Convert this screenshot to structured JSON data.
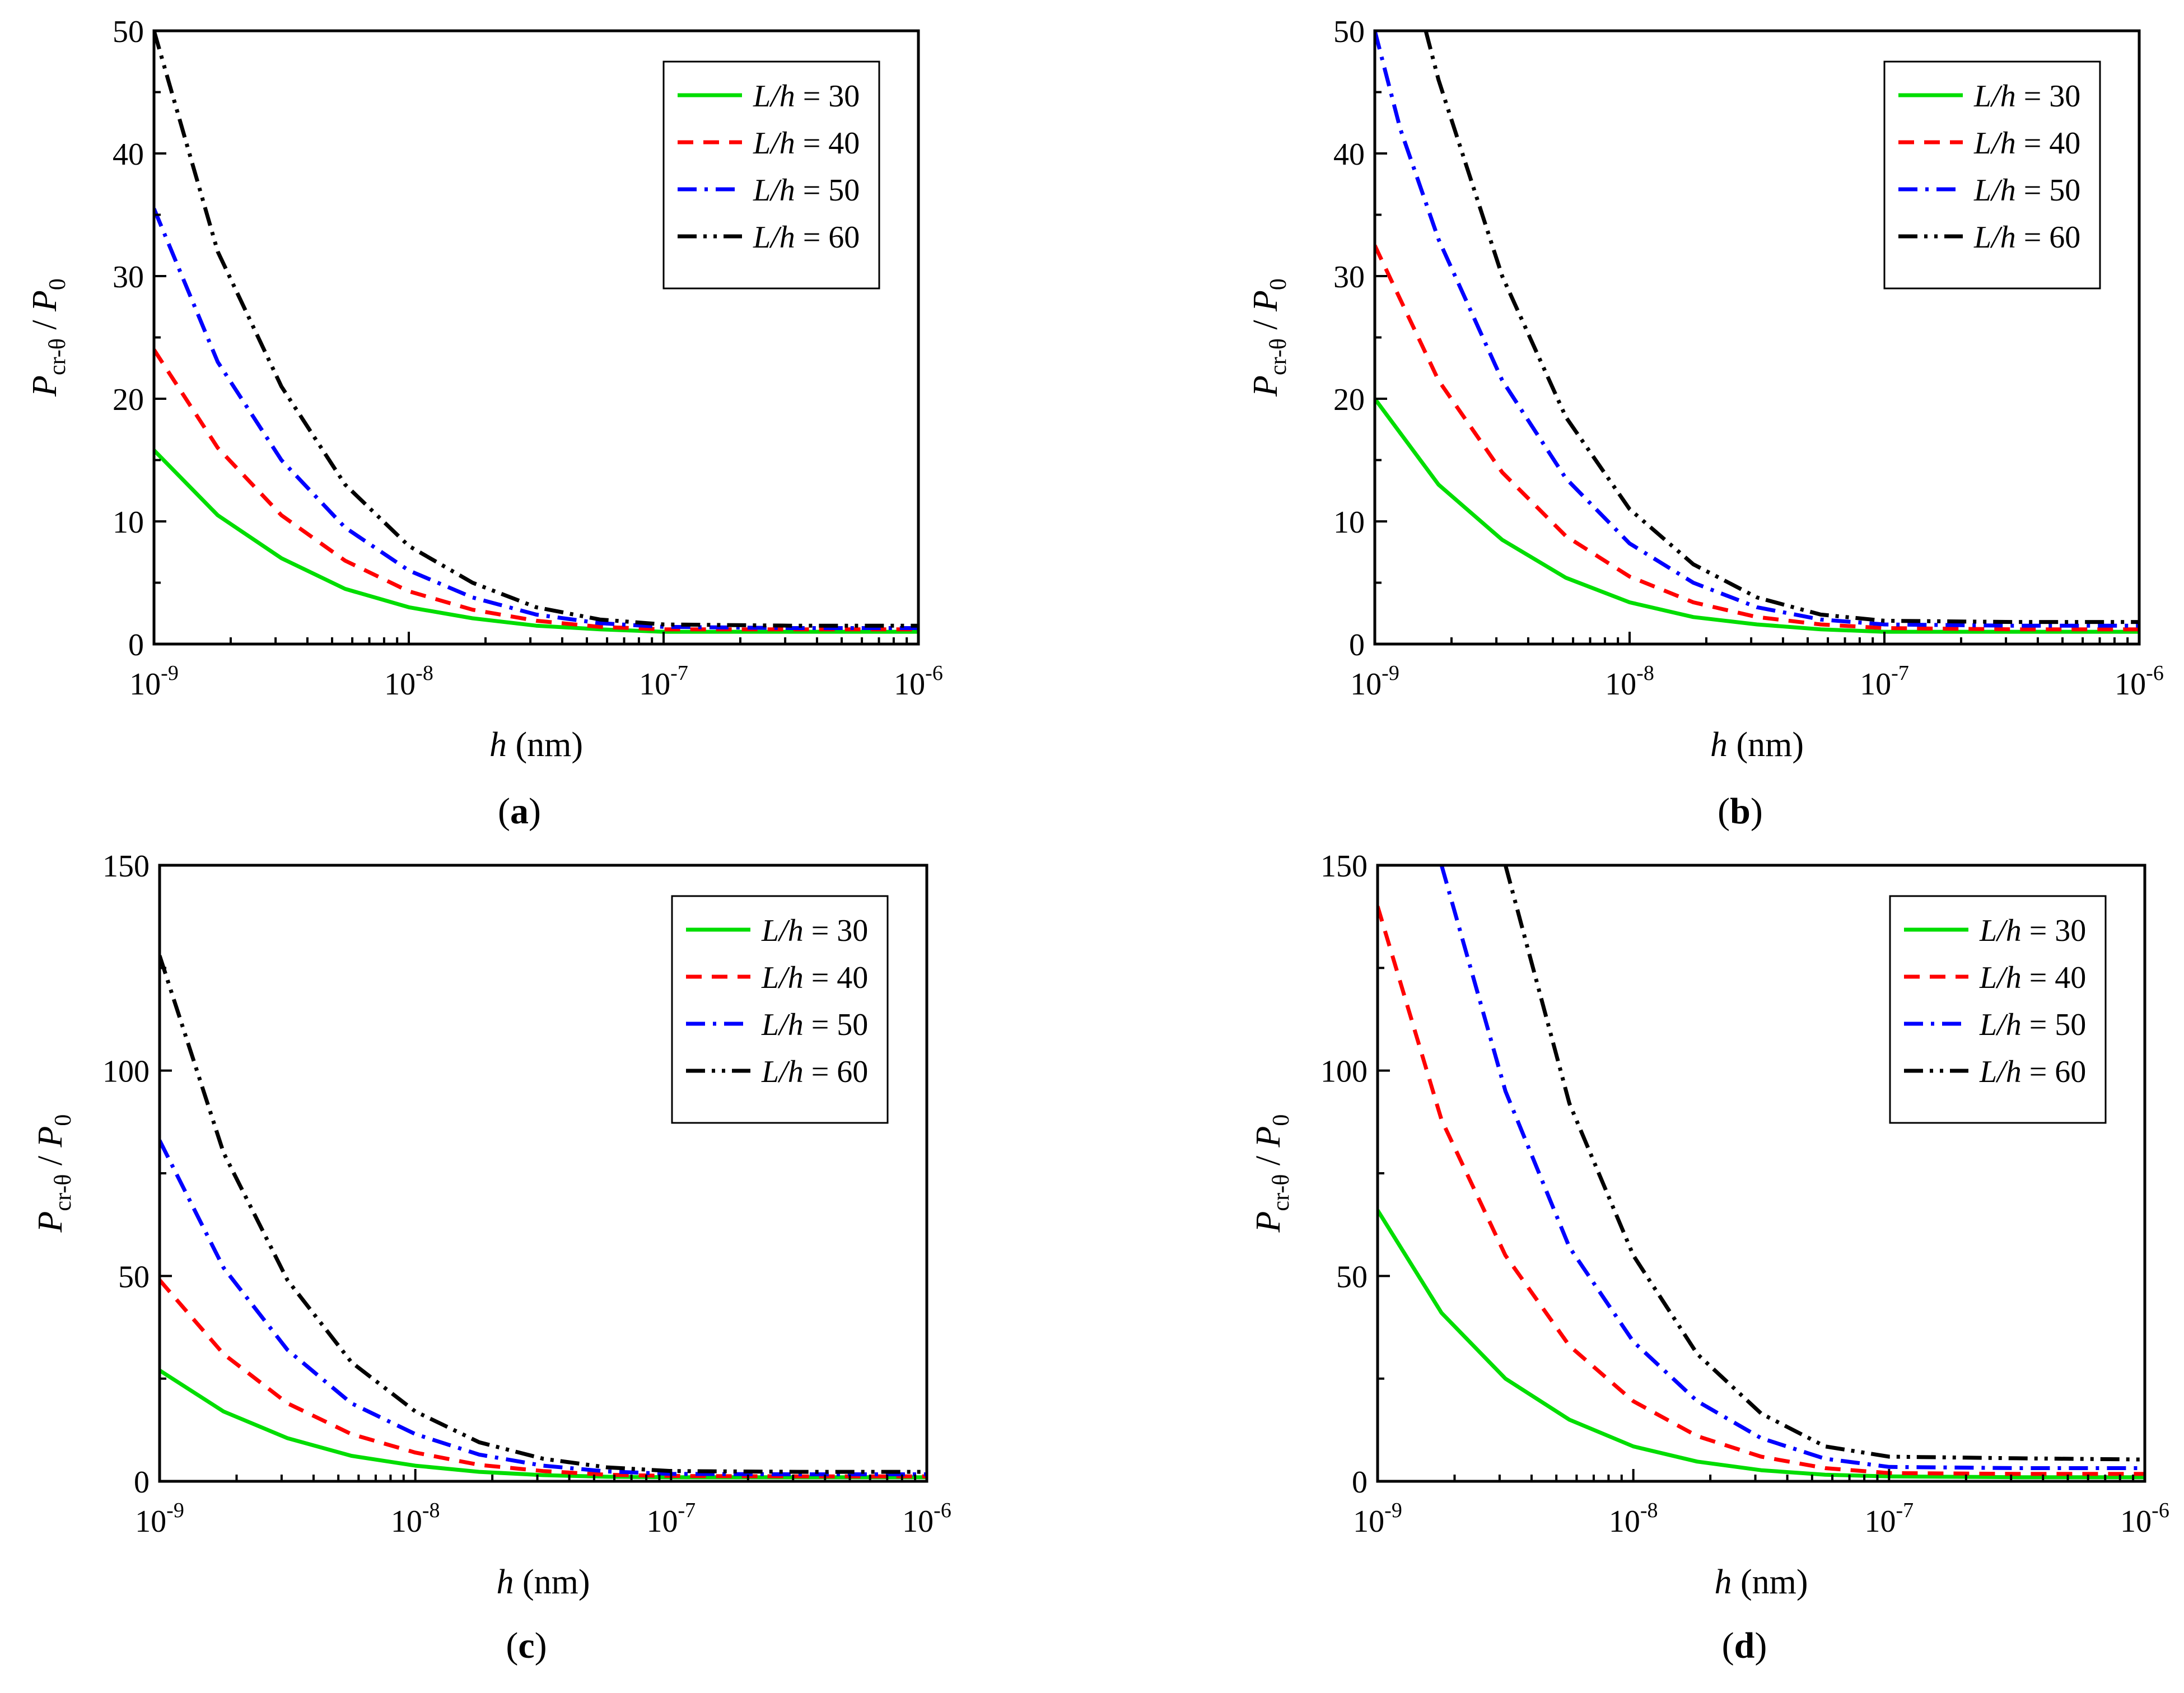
{
  "chart_data": [
    {
      "type": "line",
      "panel_label": "a",
      "xlabel": "h",
      "xlabel_unit": " (nm)",
      "ylabel_main": "P",
      "ylabel_sub": "cr-θ",
      "ylabel_sep": " / ",
      "ylabel_main2": "P",
      "ylabel_sub2": "0",
      "xscale": "log",
      "xlim_exp": [
        -9,
        -6
      ],
      "x_tick_exps": [
        "-9",
        "-8",
        "-7",
        "-6"
      ],
      "ylim": [
        0,
        50
      ],
      "y_ticks": [
        0,
        10,
        20,
        30,
        40,
        50
      ],
      "legend_position": "top-right",
      "series": [
        {
          "name": "L/h = 30",
          "label_var": "L/h",
          "label_val": " = 30",
          "color": "#00dd00",
          "dash": "solid",
          "x_exp": [
            -9,
            -8.75,
            -8.5,
            -8.25,
            -8,
            -7.75,
            -7.5,
            -7.25,
            -7,
            -6.5,
            -6
          ],
          "values": [
            15.8,
            10.5,
            7.0,
            4.5,
            3.0,
            2.1,
            1.5,
            1.2,
            1.0,
            1.0,
            1.0
          ]
        },
        {
          "name": "L/h = 40",
          "label_var": "L/h",
          "label_val": " = 40",
          "color": "#ff0000",
          "dash": "dash",
          "x_exp": [
            -9,
            -8.75,
            -8.5,
            -8.25,
            -8,
            -7.75,
            -7.5,
            -7.25,
            -7,
            -6.5,
            -6
          ],
          "values": [
            24.0,
            16.0,
            10.5,
            6.8,
            4.3,
            2.8,
            1.9,
            1.4,
            1.2,
            1.2,
            1.2
          ]
        },
        {
          "name": "L/h = 50",
          "label_var": "L/h",
          "label_val": " = 50",
          "color": "#0000ff",
          "dash": "dashdot",
          "x_exp": [
            -9,
            -8.75,
            -8.5,
            -8.25,
            -8,
            -7.75,
            -7.5,
            -7.25,
            -7,
            -6.5,
            -6
          ],
          "values": [
            35.5,
            23.0,
            15.0,
            9.5,
            6.0,
            3.8,
            2.4,
            1.7,
            1.4,
            1.3,
            1.3
          ]
        },
        {
          "name": "L/h = 60",
          "label_var": "L/h",
          "label_val": " = 60",
          "color": "#000000",
          "dash": "dashdotdot",
          "x_exp": [
            -9,
            -8.75,
            -8.5,
            -8.25,
            -8,
            -7.75,
            -7.5,
            -7.25,
            -7,
            -6.5,
            -6
          ],
          "values": [
            50.0,
            32.0,
            21.0,
            13.0,
            8.0,
            5.0,
            3.0,
            2.0,
            1.6,
            1.5,
            1.5
          ]
        }
      ]
    },
    {
      "type": "line",
      "panel_label": "b",
      "xlabel": "h",
      "xlabel_unit": " (nm)",
      "ylabel_main": "P",
      "ylabel_sub": "cr-θ",
      "ylabel_sep": " / ",
      "ylabel_main2": "P",
      "ylabel_sub2": "0",
      "xscale": "log",
      "xlim_exp": [
        -9,
        -6
      ],
      "x_tick_exps": [
        "-9",
        "-8",
        "-7",
        "-6"
      ],
      "ylim": [
        0,
        50
      ],
      "y_ticks": [
        0,
        10,
        20,
        30,
        40,
        50
      ],
      "legend_position": "top-right",
      "series": [
        {
          "name": "L/h = 30",
          "label_var": "L/h",
          "label_val": " = 30",
          "color": "#00dd00",
          "dash": "solid",
          "x_exp": [
            -9,
            -8.75,
            -8.5,
            -8.25,
            -8,
            -7.75,
            -7.5,
            -7.25,
            -7,
            -6.5,
            -6
          ],
          "values": [
            20.0,
            13.0,
            8.5,
            5.4,
            3.4,
            2.2,
            1.6,
            1.2,
            1.0,
            1.0,
            1.0
          ]
        },
        {
          "name": "L/h = 40",
          "label_var": "L/h",
          "label_val": " = 40",
          "color": "#ff0000",
          "dash": "dash",
          "x_exp": [
            -9,
            -8.75,
            -8.5,
            -8.25,
            -8,
            -7.75,
            -7.5,
            -7.25,
            -7,
            -6.5,
            -6
          ],
          "values": [
            32.5,
            21.5,
            14.0,
            8.8,
            5.5,
            3.4,
            2.2,
            1.6,
            1.3,
            1.2,
            1.2
          ]
        },
        {
          "name": "L/h = 50",
          "label_var": "L/h",
          "label_val": " = 50",
          "color": "#0000ff",
          "dash": "dashdot",
          "x_exp": [
            -9,
            -8.9,
            -8.75,
            -8.5,
            -8.25,
            -8,
            -7.75,
            -7.5,
            -7.25,
            -7,
            -6.5,
            -6
          ],
          "values": [
            50.0,
            42.0,
            33.0,
            21.5,
            13.5,
            8.2,
            5.0,
            3.0,
            2.0,
            1.6,
            1.5,
            1.5
          ]
        },
        {
          "name": "L/h = 60",
          "label_var": "L/h",
          "label_val": " = 60",
          "color": "#000000",
          "dash": "dashdotdot",
          "x_exp": [
            -8.8,
            -8.75,
            -8.5,
            -8.25,
            -8,
            -7.75,
            -7.5,
            -7.25,
            -7,
            -6.5,
            -6
          ],
          "values": [
            50.0,
            46.0,
            30.0,
            18.5,
            11.0,
            6.5,
            3.8,
            2.4,
            1.9,
            1.8,
            1.8
          ]
        }
      ]
    },
    {
      "type": "line",
      "panel_label": "c",
      "xlabel": "h",
      "xlabel_unit": " (nm)",
      "ylabel_main": "P",
      "ylabel_sub": "cr-θ",
      "ylabel_sep": " / ",
      "ylabel_main2": "P",
      "ylabel_sub2": "0",
      "xscale": "log",
      "xlim_exp": [
        -9,
        -6
      ],
      "x_tick_exps": [
        "-9",
        "-8",
        "-7",
        "-6"
      ],
      "ylim": [
        0,
        150
      ],
      "y_ticks": [
        0,
        50,
        100,
        150
      ],
      "legend_position": "top-right",
      "series": [
        {
          "name": "L/h = 30",
          "label_var": "L/h",
          "label_val": " = 30",
          "color": "#00dd00",
          "dash": "solid",
          "x_exp": [
            -9,
            -8.75,
            -8.5,
            -8.25,
            -8,
            -7.75,
            -7.5,
            -7.25,
            -7,
            -6.5,
            -6
          ],
          "values": [
            27.0,
            17.0,
            10.5,
            6.2,
            3.8,
            2.3,
            1.5,
            1.1,
            1.0,
            1.0,
            1.0
          ]
        },
        {
          "name": "L/h = 40",
          "label_var": "L/h",
          "label_val": " = 40",
          "color": "#ff0000",
          "dash": "dash",
          "x_exp": [
            -9,
            -8.75,
            -8.5,
            -8.25,
            -8,
            -7.75,
            -7.5,
            -7.25,
            -7,
            -6.5,
            -6
          ],
          "values": [
            49.0,
            31.0,
            19.0,
            11.5,
            7.0,
            4.0,
            2.5,
            1.6,
            1.3,
            1.2,
            1.2
          ]
        },
        {
          "name": "L/h = 50",
          "label_var": "L/h",
          "label_val": " = 50",
          "color": "#0000ff",
          "dash": "dashdot",
          "x_exp": [
            -9,
            -8.75,
            -8.5,
            -8.25,
            -8,
            -7.75,
            -7.5,
            -7.25,
            -7,
            -6.5,
            -6
          ],
          "values": [
            83.0,
            52.0,
            32.0,
            19.0,
            11.5,
            6.5,
            3.8,
            2.4,
            1.8,
            1.7,
            1.7
          ]
        },
        {
          "name": "L/h = 60",
          "label_var": "L/h",
          "label_val": " = 60",
          "color": "#000000",
          "dash": "dashdotdot",
          "x_exp": [
            -9,
            -8.75,
            -8.5,
            -8.25,
            -8,
            -7.75,
            -7.5,
            -7.25,
            -7,
            -6.5,
            -6
          ],
          "values": [
            128.0,
            80.0,
            49.0,
            29.0,
            17.0,
            9.5,
            5.5,
            3.4,
            2.5,
            2.3,
            2.3
          ]
        }
      ]
    },
    {
      "type": "line",
      "panel_label": "d",
      "xlabel": "h",
      "xlabel_unit": " (nm)",
      "ylabel_main": "P",
      "ylabel_sub": "cr-θ",
      "ylabel_sep": " / ",
      "ylabel_main2": "P",
      "ylabel_sub2": "0",
      "xscale": "log",
      "xlim_exp": [
        -9,
        -6
      ],
      "x_tick_exps": [
        "-9",
        "-8",
        "-7",
        "-6"
      ],
      "ylim": [
        0,
        150
      ],
      "y_ticks": [
        0,
        50,
        100,
        150
      ],
      "legend_position": "top-right",
      "series": [
        {
          "name": "L/h = 30",
          "label_var": "L/h",
          "label_val": " = 30",
          "color": "#00dd00",
          "dash": "solid",
          "x_exp": [
            -9,
            -8.75,
            -8.5,
            -8.25,
            -8,
            -7.75,
            -7.5,
            -7.25,
            -7,
            -6.5,
            -6
          ],
          "values": [
            66.0,
            41.0,
            25.0,
            15.0,
            8.5,
            4.8,
            2.7,
            1.6,
            1.2,
            1.0,
            1.0
          ]
        },
        {
          "name": "L/h = 40",
          "label_var": "L/h",
          "label_val": " = 40",
          "color": "#ff0000",
          "dash": "dash",
          "x_exp": [
            -9,
            -8.75,
            -8.5,
            -8.25,
            -8,
            -7.75,
            -7.5,
            -7.25,
            -7,
            -6.5,
            -6
          ],
          "values": [
            140.0,
            88.0,
            55.0,
            33.0,
            19.5,
            11.0,
            6.0,
            3.2,
            2.0,
            1.8,
            1.8
          ]
        },
        {
          "name": "L/h = 50",
          "label_var": "L/h",
          "label_val": " = 50",
          "color": "#0000ff",
          "dash": "dashdot",
          "x_exp": [
            -8.75,
            -8.5,
            -8.25,
            -8,
            -7.75,
            -7.5,
            -7.25,
            -7,
            -6.5,
            -6
          ],
          "values": [
            150.0,
            95.0,
            57.0,
            34.0,
            19.5,
            10.5,
            5.5,
            3.5,
            3.2,
            3.2
          ]
        },
        {
          "name": "L/h = 60",
          "label_var": "L/h",
          "label_val": " = 60",
          "color": "#000000",
          "dash": "dashdotdot",
          "x_exp": [
            -8.5,
            -8.25,
            -8,
            -7.75,
            -7.5,
            -7.25,
            -7,
            -6.5,
            -6
          ],
          "values": [
            150.0,
            92.0,
            55.0,
            31.0,
            16.5,
            8.5,
            6.0,
            5.6,
            5.3
          ]
        }
      ]
    }
  ]
}
